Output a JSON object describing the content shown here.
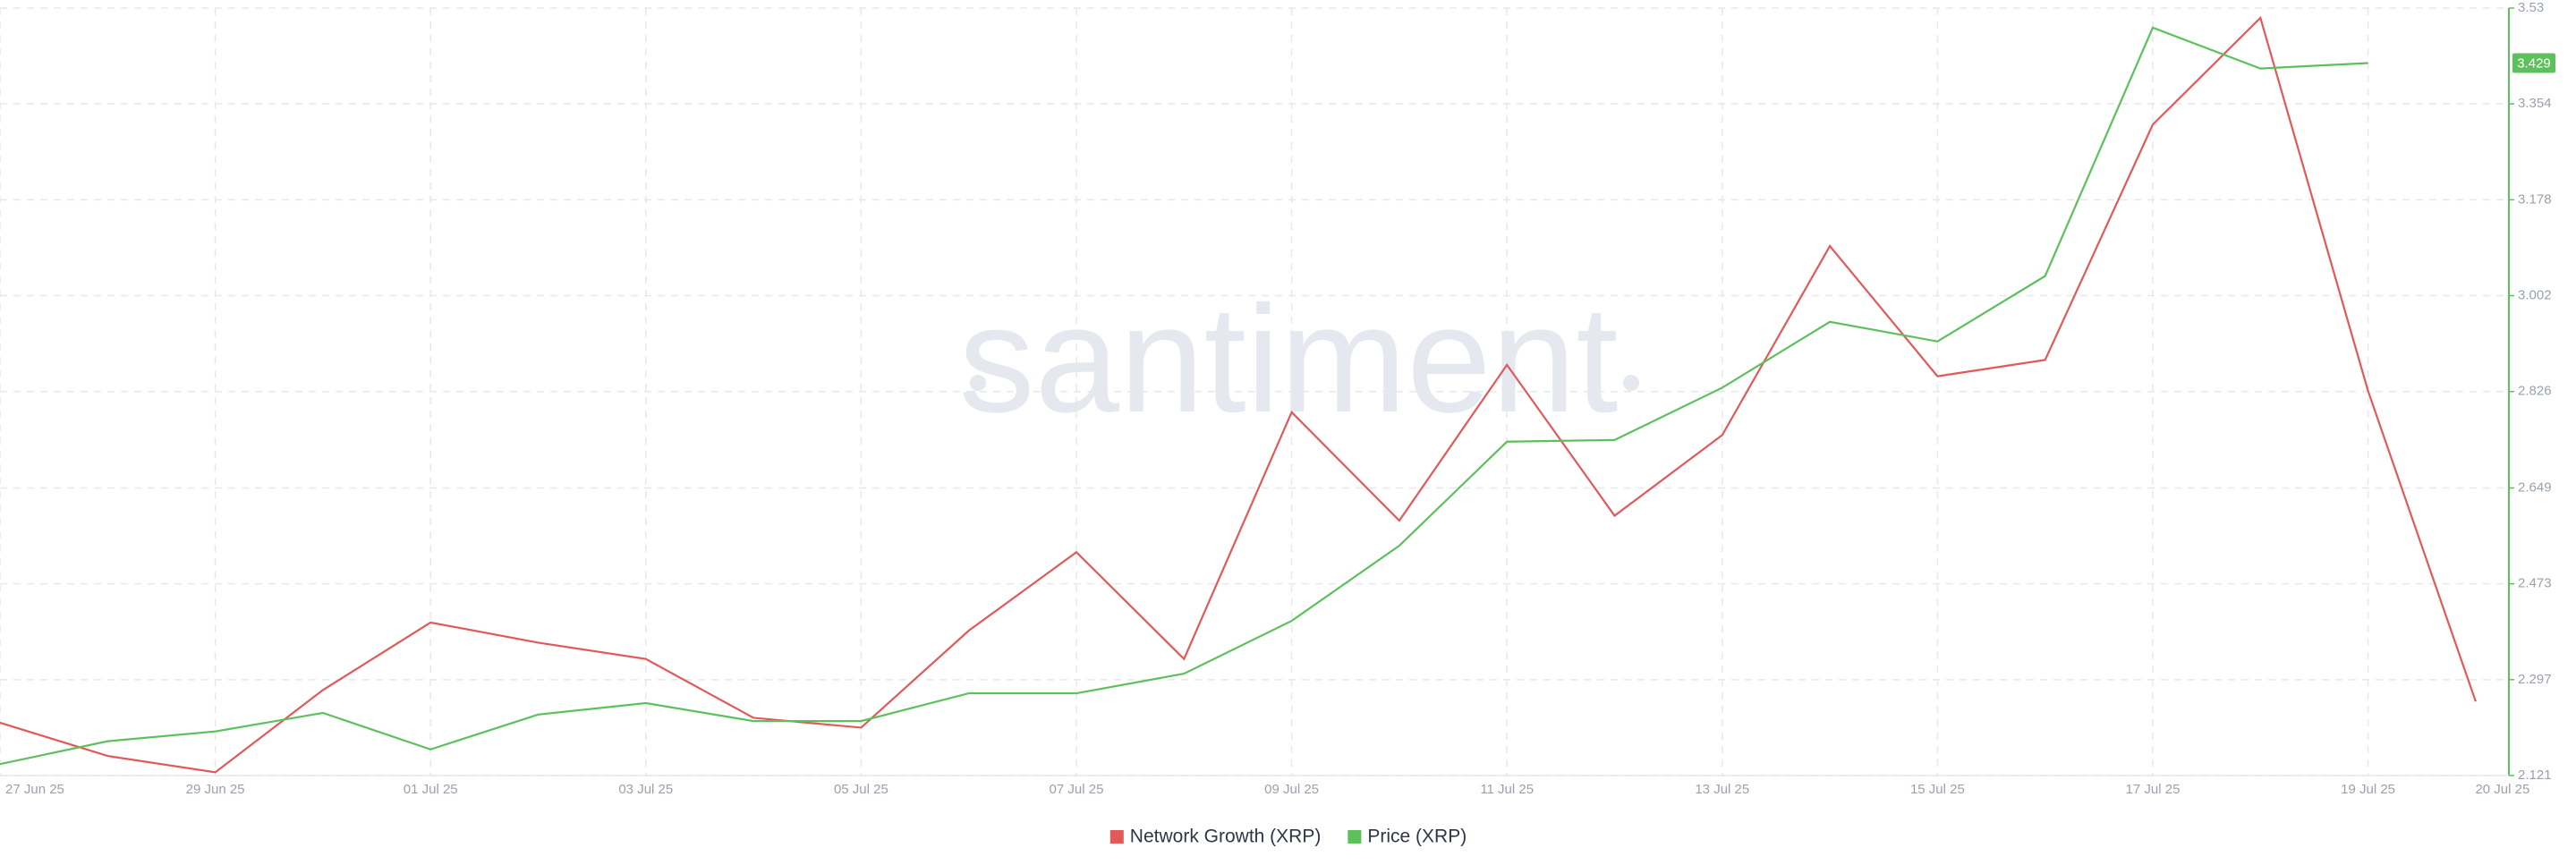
{
  "chart_data": {
    "type": "line",
    "watermark": "santiment",
    "categories": [
      "27 Jun 25",
      null,
      "29 Jun 25",
      null,
      "01 Jul 25",
      null,
      "03 Jul 25",
      null,
      "05 Jul 25",
      null,
      "07 Jul 25",
      null,
      "09 Jul 25",
      null,
      "11 Jul 25",
      null,
      "13 Jul 25",
      null,
      "15 Jul 25",
      null,
      "17 Jul 25",
      null,
      "19 Jul 25",
      "20 Jul 25"
    ],
    "series": [
      {
        "name": "Network Growth (XRP)",
        "color": "#e05a5a",
        "axis": "y2",
        "values": [
          2.218,
          2.157,
          2.127,
          2.278,
          2.402,
          2.365,
          2.335,
          2.227,
          2.209,
          2.387,
          2.531,
          2.335,
          2.788,
          2.589,
          2.875,
          2.598,
          2.746,
          3.093,
          2.854,
          2.884,
          3.316,
          3.512,
          2.827,
          2.257
        ]
      },
      {
        "name": "Price (XRP)",
        "color": "#5cc05c",
        "axis": "y2",
        "values": [
          2.142,
          2.184,
          2.202,
          2.236,
          2.169,
          2.233,
          2.254,
          2.221,
          2.221,
          2.272,
          2.272,
          2.308,
          2.405,
          2.543,
          2.734,
          2.737,
          2.833,
          2.954,
          2.918,
          3.038,
          3.494,
          3.419,
          3.429,
          null
        ],
        "value_labels": [
          null,
          null,
          null,
          null,
          null,
          null,
          null,
          null,
          null,
          null,
          null,
          null,
          null,
          null,
          null,
          null,
          null,
          null,
          null,
          null,
          null,
          null,
          "3.429",
          null
        ]
      }
    ],
    "y2lim": [
      2.121,
      3.53
    ],
    "y2ticks": [
      2.121,
      2.297,
      2.473,
      2.649,
      2.826,
      3.002,
      3.178,
      3.354,
      3.53
    ],
    "grid": true,
    "legend": "bottom"
  }
}
